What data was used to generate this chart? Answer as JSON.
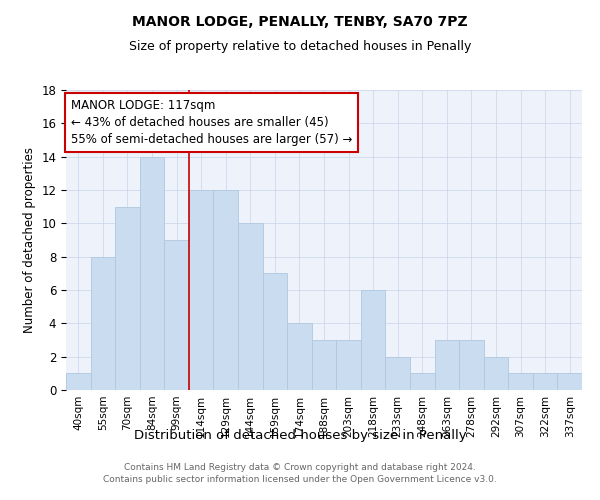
{
  "title": "MANOR LODGE, PENALLY, TENBY, SA70 7PZ",
  "subtitle": "Size of property relative to detached houses in Penally",
  "xlabel": "Distribution of detached houses by size in Penally",
  "ylabel": "Number of detached properties",
  "categories": [
    "40sqm",
    "55sqm",
    "70sqm",
    "84sqm",
    "99sqm",
    "114sqm",
    "129sqm",
    "144sqm",
    "159sqm",
    "174sqm",
    "188sqm",
    "203sqm",
    "218sqm",
    "233sqm",
    "248sqm",
    "263sqm",
    "278sqm",
    "292sqm",
    "307sqm",
    "322sqm",
    "337sqm"
  ],
  "values": [
    1,
    8,
    11,
    14,
    9,
    12,
    12,
    10,
    7,
    4,
    3,
    3,
    6,
    2,
    1,
    3,
    3,
    2,
    1,
    1,
    1
  ],
  "bar_color": "#c9dcf0",
  "bar_edge_color": "#b0c8e0",
  "vline_color": "#cc0000",
  "annotation_title": "MANOR LODGE: 117sqm",
  "annotation_line1": "← 43% of detached houses are smaller (45)",
  "annotation_line2": "55% of semi-detached houses are larger (57) →",
  "annotation_box_color": "#ffffff",
  "annotation_box_edge": "#cc0000",
  "ylim": [
    0,
    18
  ],
  "yticks": [
    0,
    2,
    4,
    6,
    8,
    10,
    12,
    14,
    16,
    18
  ],
  "footnote1": "Contains HM Land Registry data © Crown copyright and database right 2024.",
  "footnote2": "Contains public sector information licensed under the Open Government Licence v3.0.",
  "bg_color": "#edf2fb",
  "grid_color": "#c8d4e8",
  "title_fontsize": 10,
  "subtitle_fontsize": 9
}
